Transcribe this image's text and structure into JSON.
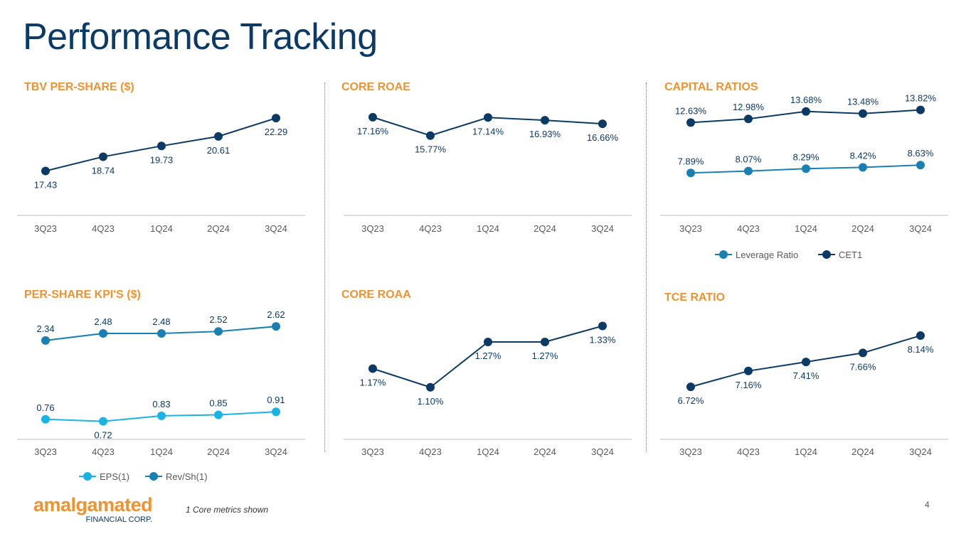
{
  "page": {
    "title": "Performance Tracking",
    "footnote": "1 Core metrics shown",
    "page_number": "4",
    "logo": {
      "word": "amalgamated",
      "sub": "FINANCIAL CORP."
    }
  },
  "colors": {
    "navy": "#0b3a66",
    "orange": "#f0922f",
    "light_blue": "#1ab3e6",
    "mid_blue": "#1a7fb3"
  },
  "chart_data": [
    {
      "id": "tbv",
      "type": "line",
      "title": "TBV PER-SHARE ($)",
      "categories": [
        "3Q23",
        "4Q23",
        "1Q24",
        "2Q24",
        "3Q24"
      ],
      "series": [
        {
          "values": [
            17.43,
            18.74,
            19.73,
            20.61,
            22.29
          ],
          "labels": [
            "17.43",
            "18.74",
            "19.73",
            "20.61",
            "22.29"
          ],
          "color": "#0b3a66"
        }
      ],
      "ylim": [
        15.5,
        24
      ],
      "legend": []
    },
    {
      "id": "roae",
      "type": "line",
      "title": "CORE ROAE",
      "categories": [
        "3Q23",
        "4Q23",
        "1Q24",
        "2Q24",
        "3Q24"
      ],
      "series": [
        {
          "values": [
            17.16,
            15.77,
            17.14,
            16.93,
            16.66
          ],
          "labels": [
            "17.16%",
            "15.77%",
            "17.14%",
            "16.93%",
            "16.66%"
          ],
          "color": "#0b3a66"
        }
      ],
      "ylim": [
        11.5,
        18.5
      ],
      "legend": []
    },
    {
      "id": "capital",
      "type": "line",
      "title": "CAPITAL RATIOS",
      "categories": [
        "3Q23",
        "4Q23",
        "1Q24",
        "2Q24",
        "3Q24"
      ],
      "series": [
        {
          "name": "Leverage Ratio",
          "values": [
            7.89,
            8.07,
            8.29,
            8.42,
            8.63
          ],
          "labels": [
            "7.89%",
            "8.07%",
            "8.29%",
            "8.42%",
            "8.63%"
          ],
          "color": "#1a7fb3"
        },
        {
          "name": "CET1",
          "values": [
            12.63,
            12.98,
            13.68,
            13.48,
            13.82
          ],
          "labels": [
            "12.63%",
            "12.98%",
            "13.68%",
            "13.48%",
            "13.82%"
          ],
          "color": "#0b3a66"
        }
      ],
      "ylim": [
        6.1,
        14.8
      ],
      "legend": [
        "Leverage Ratio",
        "CET1"
      ]
    },
    {
      "id": "kpi",
      "type": "line",
      "title": "PER-SHARE KPI'S ($)",
      "categories": [
        "3Q23",
        "4Q23",
        "1Q24",
        "2Q24",
        "3Q24"
      ],
      "series": [
        {
          "name": "EPS(1)",
          "values": [
            0.76,
            0.72,
            0.83,
            0.85,
            0.91
          ],
          "labels": [
            "0.76",
            "0.72",
            "0.83",
            "0.85",
            "0.91"
          ],
          "color": "#1ab3e6"
        },
        {
          "name": "Rev/Sh(1)",
          "values": [
            2.34,
            2.48,
            2.48,
            2.52,
            2.62
          ],
          "labels": [
            "2.34",
            "2.48",
            "2.48",
            "2.52",
            "2.62"
          ],
          "color": "#1a7fb3"
        }
      ],
      "ylim": [
        0.6,
        2.95
      ],
      "legend": [
        "EPS(1)",
        "Rev/Sh(1)"
      ]
    },
    {
      "id": "roaa",
      "type": "line",
      "title": "CORE ROAA",
      "categories": [
        "3Q23",
        "4Q23",
        "1Q24",
        "2Q24",
        "3Q24"
      ],
      "series": [
        {
          "values": [
            1.17,
            1.1,
            1.27,
            1.27,
            1.33
          ],
          "labels": [
            "1.17%",
            "1.10%",
            "1.27%",
            "1.27%",
            "1.33%"
          ],
          "color": "#0b3a66"
        }
      ],
      "ylim": [
        0.95,
        1.39
      ],
      "legend": []
    },
    {
      "id": "tce",
      "type": "line",
      "title": "TCE RATIO",
      "categories": [
        "3Q23",
        "4Q23",
        "1Q24",
        "2Q24",
        "3Q24"
      ],
      "series": [
        {
          "values": [
            6.72,
            7.16,
            7.41,
            7.66,
            8.14
          ],
          "labels": [
            "6.72%",
            "7.16%",
            "7.41%",
            "7.66%",
            "8.14%"
          ],
          "color": "#0b3a66"
        }
      ],
      "ylim": [
        5.6,
        8.85
      ],
      "legend": []
    }
  ]
}
